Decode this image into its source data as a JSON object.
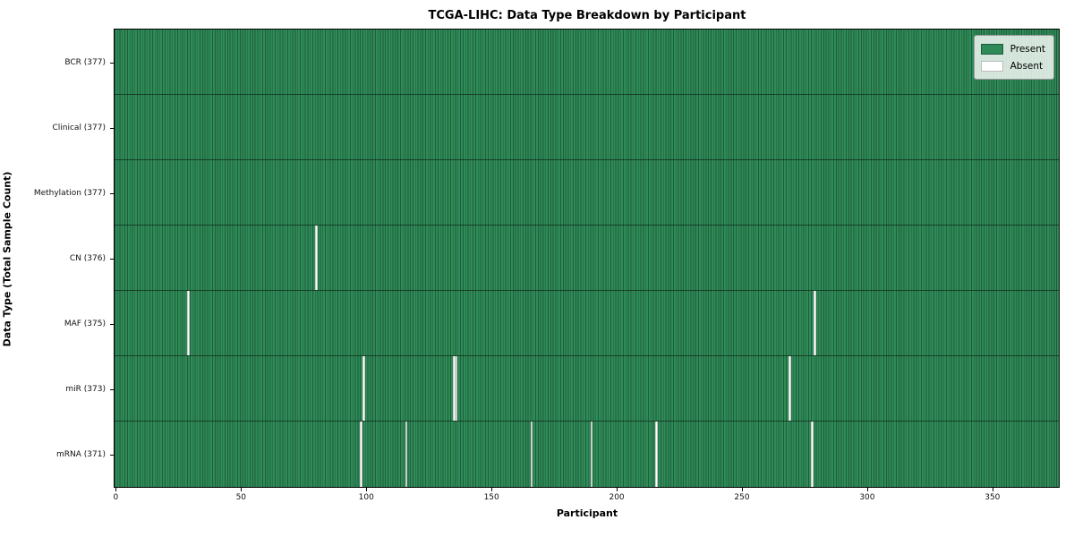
{
  "title": "TCGA-LIHC: Data Type Breakdown by Participant",
  "axes": {
    "xlabel": "Participant",
    "ylabel": "Data Type (Total Sample Count)",
    "x_ticks": [
      0,
      50,
      100,
      150,
      200,
      250,
      300,
      350
    ]
  },
  "legend": {
    "items": [
      {
        "label": "Present",
        "color": "#2E8B57",
        "edge": "#1E5C3B"
      },
      {
        "label": "Absent",
        "color": "#FFFFFF",
        "edge": "#BBBBBB"
      }
    ]
  },
  "colors": {
    "present_fill": "#2F8B57",
    "bar_edge": "#1F5E3C",
    "absent_fill": "#FFFFFF",
    "row_separator": "rgba(10,30,18,0.65)",
    "plot_border": "#000000"
  },
  "chart_data": {
    "type": "heatmap",
    "title": "TCGA-LIHC: Data Type Breakdown by Participant",
    "xlabel": "Participant",
    "ylabel": "Data Type (Total Sample Count)",
    "total_participants": 377,
    "x_range": [
      0,
      376
    ],
    "x_ticks": [
      0,
      50,
      100,
      150,
      200,
      250,
      300,
      350
    ],
    "legend": [
      "Present",
      "Absent"
    ],
    "legend_position": "upper right",
    "grid": false,
    "rows": [
      {
        "label": "BCR (377)",
        "data_type": "BCR",
        "present_count": 377,
        "absent_participants": []
      },
      {
        "label": "Clinical (377)",
        "data_type": "Clinical",
        "present_count": 377,
        "absent_participants": []
      },
      {
        "label": "Methylation (377)",
        "data_type": "Methylation",
        "present_count": 377,
        "absent_participants": []
      },
      {
        "label": "CN (376)",
        "data_type": "CN",
        "present_count": 376,
        "absent_participants": [
          80
        ]
      },
      {
        "label": "MAF (375)",
        "data_type": "MAF",
        "present_count": 375,
        "absent_participants": [
          29,
          279
        ]
      },
      {
        "label": "miR (373)",
        "data_type": "miR",
        "present_count": 373,
        "absent_participants": [
          99,
          135,
          136,
          269
        ]
      },
      {
        "label": "mRNA (371)",
        "data_type": "mRNA",
        "present_count": 371,
        "absent_participants": [
          98,
          116,
          166,
          190,
          216,
          278
        ]
      }
    ]
  }
}
